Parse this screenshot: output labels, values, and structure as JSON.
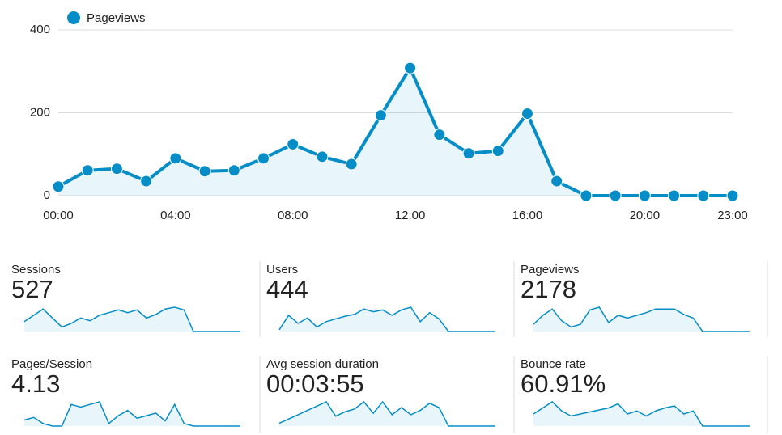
{
  "chart_data": {
    "type": "line",
    "categories": [
      "00:00",
      null,
      null,
      null,
      "04:00",
      null,
      null,
      null,
      "08:00",
      null,
      null,
      null,
      "12:00",
      null,
      null,
      null,
      "16:00",
      null,
      null,
      null,
      "20:00",
      null,
      null,
      "23:00"
    ],
    "series": [
      {
        "name": "Pageviews",
        "color": "#058dc7",
        "values": [
          22,
          61,
          65,
          35,
          90,
          59,
          61,
          90,
          124,
          94,
          76,
          194,
          308,
          147,
          102,
          108,
          198,
          35,
          0,
          0,
          0,
          0,
          0,
          0
        ]
      }
    ],
    "ylim": [
      0,
      400
    ],
    "yticks": [
      0,
      200,
      400
    ],
    "grid": true,
    "legend": "top-left"
  },
  "metrics": [
    {
      "label": "Sessions",
      "value": "527",
      "values": [
        11,
        18,
        25,
        15,
        5,
        9,
        15,
        12,
        18,
        21,
        24,
        21,
        24,
        15,
        19,
        25,
        27,
        24,
        0,
        0,
        0,
        0,
        0,
        0
      ]
    },
    {
      "label": "Users",
      "value": "444",
      "values": [
        2,
        18,
        9,
        15,
        5,
        11,
        14,
        17,
        19,
        25,
        22,
        24,
        18,
        24,
        27,
        11,
        21,
        14,
        0,
        0,
        0,
        0,
        0,
        0
      ]
    },
    {
      "label": "Pageviews",
      "value": "2178",
      "values": [
        8,
        18,
        25,
        12,
        5,
        8,
        24,
        27,
        10,
        18,
        15,
        18,
        21,
        25,
        25,
        25,
        19,
        15,
        0,
        0,
        0,
        0,
        0,
        0
      ]
    },
    {
      "label": "Pages/Session",
      "value": "4.13",
      "values": [
        7,
        10,
        3,
        0,
        0,
        25,
        22,
        25,
        28,
        3,
        12,
        18,
        9,
        12,
        15,
        6,
        25,
        3,
        0,
        0,
        0,
        0,
        0,
        0
      ]
    },
    {
      "label": "Avg session duration",
      "value": "00:03:55",
      "values": [
        2,
        5,
        8,
        11,
        14,
        17,
        7,
        10,
        12,
        17,
        9,
        17,
        8,
        13,
        8,
        11,
        16,
        13,
        0,
        0,
        0,
        0,
        0,
        0
      ]
    },
    {
      "label": "Bounce rate",
      "value": "60.91%",
      "values": [
        12,
        18,
        24,
        15,
        10,
        12,
        14,
        16,
        18,
        22,
        12,
        15,
        10,
        15,
        18,
        20,
        12,
        15,
        0,
        0,
        0,
        0,
        0,
        0
      ]
    }
  ]
}
